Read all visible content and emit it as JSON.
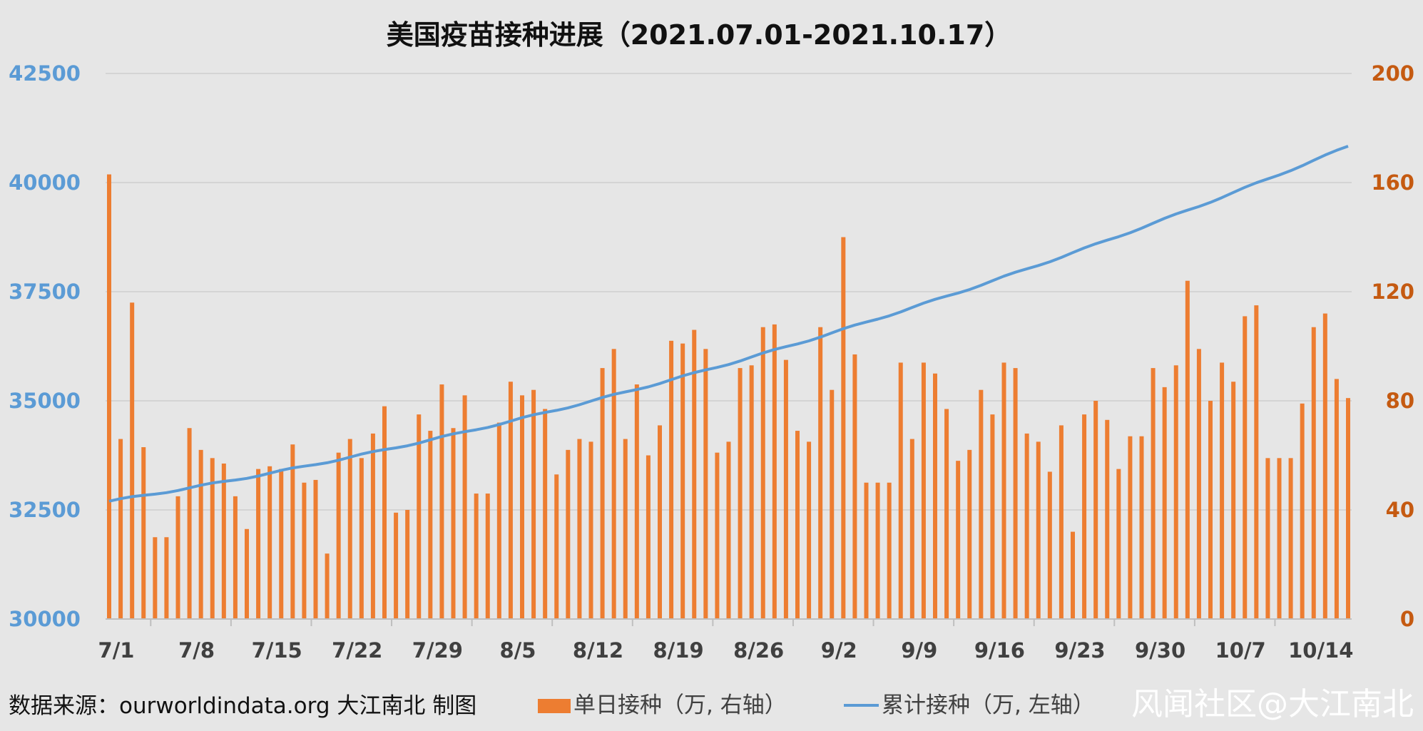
{
  "footer": {
    "source": "数据来源：ourworldindata.org 大江南北 制图",
    "watermark": "风闻社区@大江南北"
  },
  "chart_data": {
    "type": "bar+line",
    "title": "美国疫苗接种进展（2021.07.01-2021.10.17）",
    "x_tick_labels": [
      "7/1",
      "7/8",
      "7/15",
      "7/22",
      "7/29",
      "8/5",
      "8/12",
      "8/19",
      "8/26",
      "9/2",
      "9/9",
      "9/16",
      "9/23",
      "9/30",
      "10/7",
      "10/14"
    ],
    "y_left": {
      "ticks": [
        "42500",
        "40000",
        "37500",
        "35000",
        "32500",
        "30000"
      ],
      "range": [
        30000,
        42500
      ]
    },
    "y_right": {
      "ticks": [
        "200",
        "160",
        "120",
        "80",
        "40",
        "0"
      ],
      "range": [
        0,
        200
      ]
    },
    "grid": true,
    "legend_position": "bottom",
    "colors": {
      "bar": "#ed7d31",
      "line": "#5b9bd5",
      "left_axis": "#5b9bd5",
      "right_axis": "#c55a11"
    },
    "series": [
      {
        "name": "单日接种（万, 右轴）",
        "type": "bar",
        "axis": "right",
        "values": [
          163,
          66,
          116,
          63,
          30,
          30,
          45,
          70,
          62,
          59,
          57,
          45,
          33,
          55,
          56,
          55,
          64,
          50,
          51,
          24,
          61,
          66,
          59,
          68,
          78,
          39,
          40,
          75,
          69,
          86,
          70,
          82,
          46,
          46,
          72,
          87,
          82,
          84,
          77,
          53,
          62,
          66,
          65,
          92,
          99,
          66,
          86,
          60,
          71,
          102,
          101,
          106,
          99,
          61,
          65,
          92,
          93,
          107,
          108,
          95,
          69,
          65,
          107,
          84,
          140,
          97,
          50,
          50,
          50,
          94,
          66,
          94,
          90,
          77,
          58,
          62,
          84,
          75,
          94,
          92,
          68,
          65,
          54,
          71,
          32,
          75,
          80,
          73,
          55,
          67,
          67,
          92,
          85,
          93,
          124,
          99,
          80,
          94,
          87,
          111,
          115,
          59,
          59,
          59,
          79,
          107,
          112,
          88,
          81
        ]
      },
      {
        "name": "累计接种（万, 左轴）",
        "type": "line",
        "axis": "left",
        "start": "2021-07-01",
        "end": "2021-10-17",
        "start_value": 32700,
        "end_value": 40830
      }
    ]
  }
}
